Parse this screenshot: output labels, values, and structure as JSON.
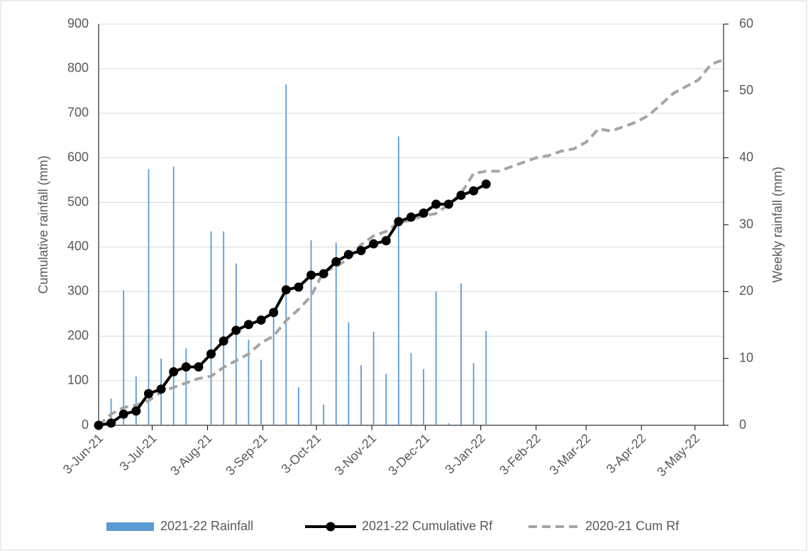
{
  "chart_data": {
    "type": "combo",
    "x": [
      "2021-06-03",
      "2021-06-10",
      "2021-06-17",
      "2021-06-24",
      "2021-07-01",
      "2021-07-08",
      "2021-07-15",
      "2021-07-22",
      "2021-07-29",
      "2021-08-05",
      "2021-08-12",
      "2021-08-19",
      "2021-08-26",
      "2021-09-02",
      "2021-09-09",
      "2021-09-16",
      "2021-09-23",
      "2021-09-30",
      "2021-10-07",
      "2021-10-14",
      "2021-10-21",
      "2021-10-28",
      "2021-11-04",
      "2021-11-11",
      "2021-11-18",
      "2021-11-25",
      "2021-12-02",
      "2021-12-09",
      "2021-12-16",
      "2021-12-23",
      "2021-12-30",
      "2022-01-06",
      "2022-01-13",
      "2022-01-20",
      "2022-01-27",
      "2022-02-03",
      "2022-02-10",
      "2022-02-17",
      "2022-02-24",
      "2022-03-03",
      "2022-03-10",
      "2022-03-17",
      "2022-03-24",
      "2022-03-31",
      "2022-04-07",
      "2022-04-14",
      "2022-04-21",
      "2022-04-28",
      "2022-05-05",
      "2022-05-12",
      "2022-05-19"
    ],
    "series": [
      {
        "name": "2021-22 Rainfall",
        "type": "bar",
        "axis": "y2",
        "color": "#5b9bd5",
        "values": [
          null,
          4,
          20.2,
          7.3,
          38.3,
          10,
          38.7,
          11.5,
          0,
          29,
          29,
          24.2,
          12.8,
          9.8,
          17,
          51,
          5.7,
          27.7,
          3.1,
          27.3,
          15.4,
          9,
          14,
          7.7,
          43.2,
          10.8,
          8.4,
          20,
          0.3,
          21.2,
          9.3,
          14.1,
          null,
          null,
          null,
          null,
          null,
          null,
          null,
          null,
          null,
          null,
          null,
          null,
          null,
          null,
          null,
          null,
          null,
          null,
          null
        ]
      },
      {
        "name": "2021-22 Cumulative Rf",
        "type": "line",
        "color": "#000000",
        "markers": true,
        "dashed": false,
        "values": [
          0,
          5,
          25,
          32,
          71,
          81,
          120,
          131,
          131,
          160,
          189,
          213,
          226,
          236,
          253,
          304,
          310,
          337,
          340,
          367,
          383,
          392,
          407,
          414,
          457,
          467,
          476,
          496,
          496,
          516,
          526,
          541,
          null,
          null,
          null,
          null,
          null,
          null,
          null,
          null,
          null,
          null,
          null,
          null,
          null,
          null,
          null,
          null,
          null,
          null,
          null
        ]
      },
      {
        "name": "2020-21 Cum Rf",
        "type": "line",
        "color": "#a5a5a5",
        "markers": false,
        "dashed": true,
        "values": [
          0,
          25,
          40,
          45,
          55,
          75,
          85,
          95,
          105,
          110,
          130,
          145,
          160,
          185,
          200,
          235,
          260,
          290,
          345,
          355,
          375,
          405,
          425,
          435,
          455,
          460,
          470,
          475,
          495,
          520,
          565,
          570,
          570,
          580,
          590,
          600,
          605,
          615,
          620,
          635,
          665,
          660,
          670,
          680,
          695,
          720,
          745,
          760,
          775,
          810,
          820
        ]
      }
    ],
    "xlim": [
      "2021-06-03",
      "2022-05-19"
    ],
    "xticks": [
      {
        "value": "2021-06-03",
        "label": "3-Jun-21"
      },
      {
        "value": "2021-07-03",
        "label": "3-Jul-21"
      },
      {
        "value": "2021-08-03",
        "label": "3-Aug-21"
      },
      {
        "value": "2021-09-03",
        "label": "3-Sep-21"
      },
      {
        "value": "2021-10-03",
        "label": "3-Oct-21"
      },
      {
        "value": "2021-11-03",
        "label": "3-Nov-21"
      },
      {
        "value": "2021-12-03",
        "label": "3-Dec-21"
      },
      {
        "value": "2022-01-03",
        "label": "3-Jan-22"
      },
      {
        "value": "2022-02-03",
        "label": "3-Feb-22"
      },
      {
        "value": "2022-03-03",
        "label": "3-Mar-22"
      },
      {
        "value": "2022-04-03",
        "label": "3-Apr-22"
      },
      {
        "value": "2022-05-03",
        "label": "3-May-22"
      }
    ],
    "ylabel": "Cumulative rainfall (mm)",
    "ylim": [
      0,
      900
    ],
    "yticks": [
      0,
      100,
      200,
      300,
      400,
      500,
      600,
      700,
      800,
      900
    ],
    "y2label": "Weekly rainfall (mm)",
    "y2lim": [
      0,
      60
    ],
    "y2ticks": [
      0,
      10,
      20,
      30,
      40,
      50,
      60
    ],
    "grid": true,
    "legend": "bottom"
  }
}
